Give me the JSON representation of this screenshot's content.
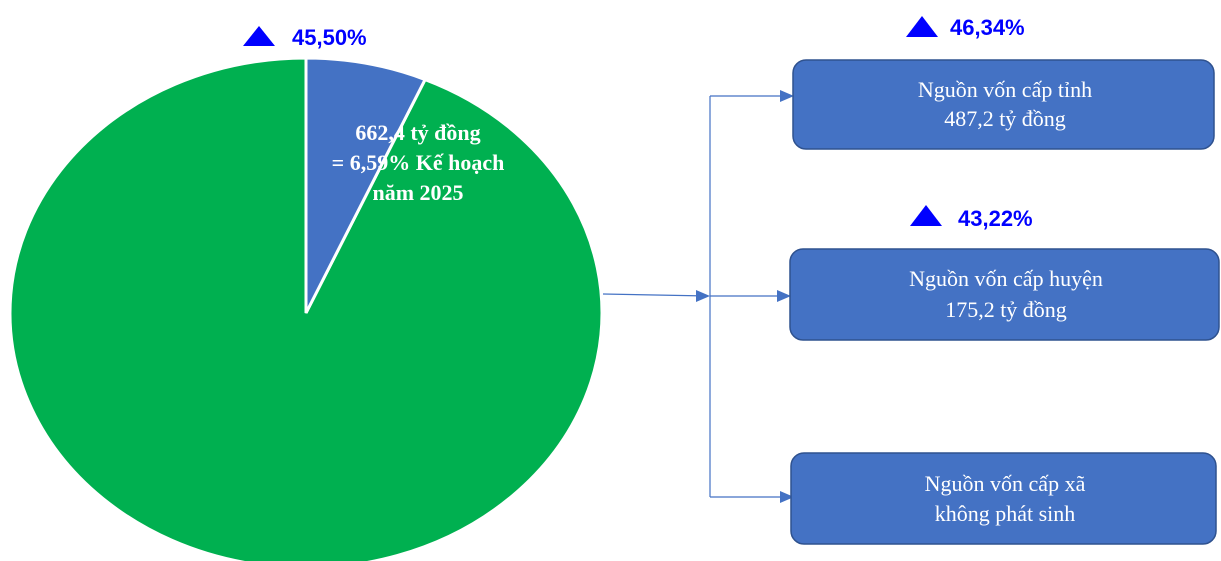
{
  "colors": {
    "pie_main": "#00b050",
    "pie_slice": "#4472c4",
    "box_fill": "#4472c4",
    "box_stroke": "#2f528f",
    "indicator": "#0000ff",
    "connector": "#4472c4"
  },
  "chart_data": {
    "type": "pie",
    "slices": [
      {
        "value": 6.59,
        "color": "#4472c4"
      },
      {
        "value": 93.41,
        "color": "#00b050"
      }
    ],
    "growth_indicator": {
      "icon": "triangle-up-icon",
      "value": "45,50%"
    },
    "slice_label": {
      "lines": [
        "662,4 tỷ đồng",
        "= 6,59% Kế hoạch",
        "năm 2025"
      ]
    }
  },
  "breakdown": [
    {
      "indicator": {
        "icon": "triangle-up-icon",
        "value": "46,34%"
      },
      "lines": [
        "Nguồn vốn cấp tỉnh",
        "487,2 tỷ đồng"
      ]
    },
    {
      "indicator": {
        "icon": "triangle-up-icon",
        "value": "43,22%"
      },
      "lines": [
        "Nguồn vốn cấp huyện",
        "175,2 tỷ đồng"
      ]
    },
    {
      "lines": [
        "Nguồn vốn cấp xã",
        "không phát sinh"
      ]
    }
  ]
}
